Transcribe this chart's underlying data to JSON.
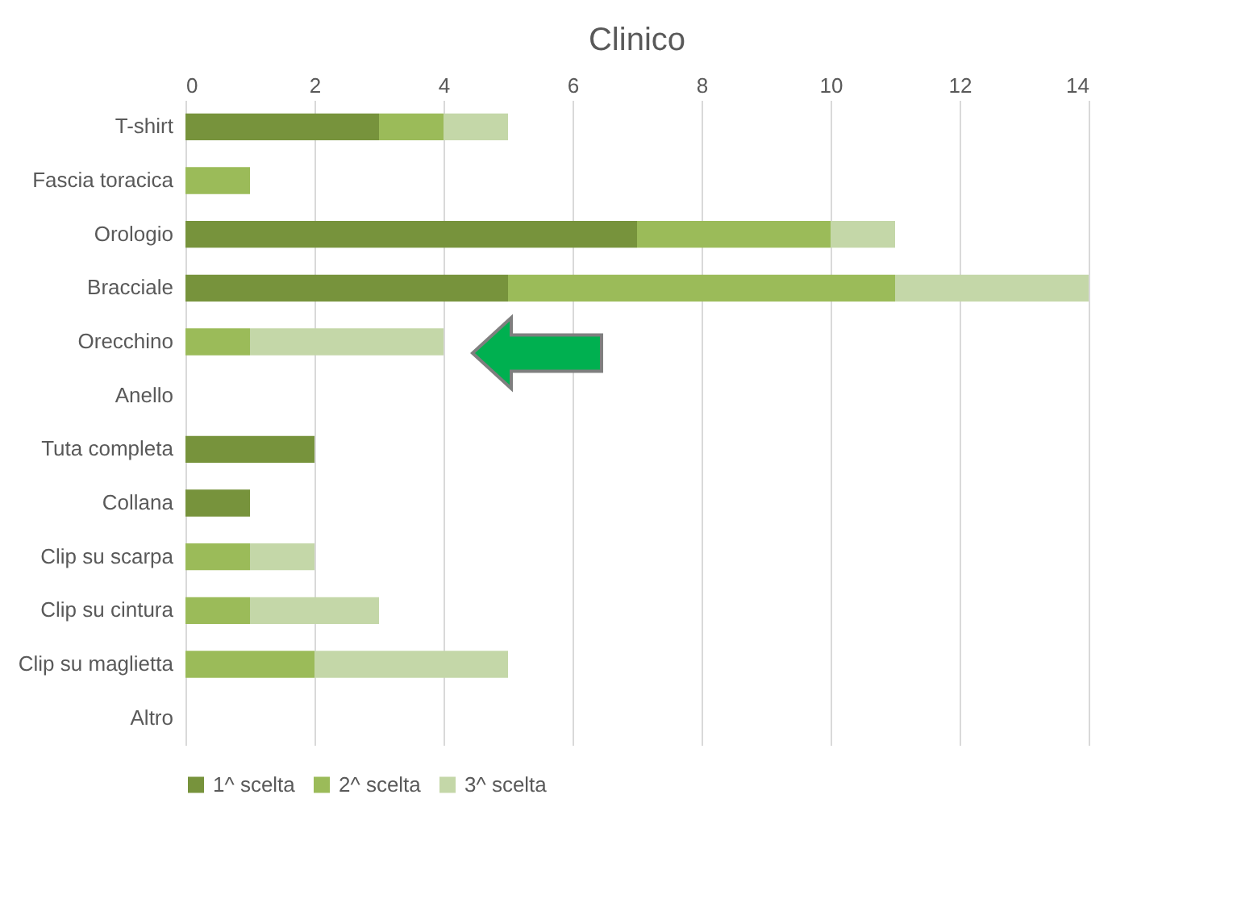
{
  "chart_data": {
    "type": "bar",
    "orientation": "horizontal",
    "stacked": true,
    "title": "Clinico",
    "categories": [
      "T-shirt",
      "Fascia toracica",
      "Orologio",
      "Bracciale",
      "Orecchino",
      "Anello",
      "Tuta completa",
      "Collana",
      "Clip su scarpa",
      "Clip su cintura",
      "Clip su maglietta",
      "Altro"
    ],
    "series": [
      {
        "name": "1^ scelta",
        "color": "#77933c",
        "values": [
          3,
          0,
          7,
          5,
          0,
          0,
          2,
          1,
          0,
          0,
          0,
          0
        ]
      },
      {
        "name": "2^ scelta",
        "color": "#9bbb59",
        "values": [
          1,
          1,
          3,
          6,
          1,
          0,
          0,
          0,
          1,
          1,
          2,
          0
        ]
      },
      {
        "name": "3^ scelta",
        "color": "#c4d7a8",
        "values": [
          1,
          0,
          1,
          3,
          3,
          0,
          0,
          0,
          1,
          2,
          3,
          0
        ]
      }
    ],
    "xlim": [
      0,
      14
    ],
    "xticks": [
      0,
      2,
      4,
      6,
      8,
      10,
      12,
      14
    ],
    "grid": "x",
    "legend": "bottom"
  }
}
